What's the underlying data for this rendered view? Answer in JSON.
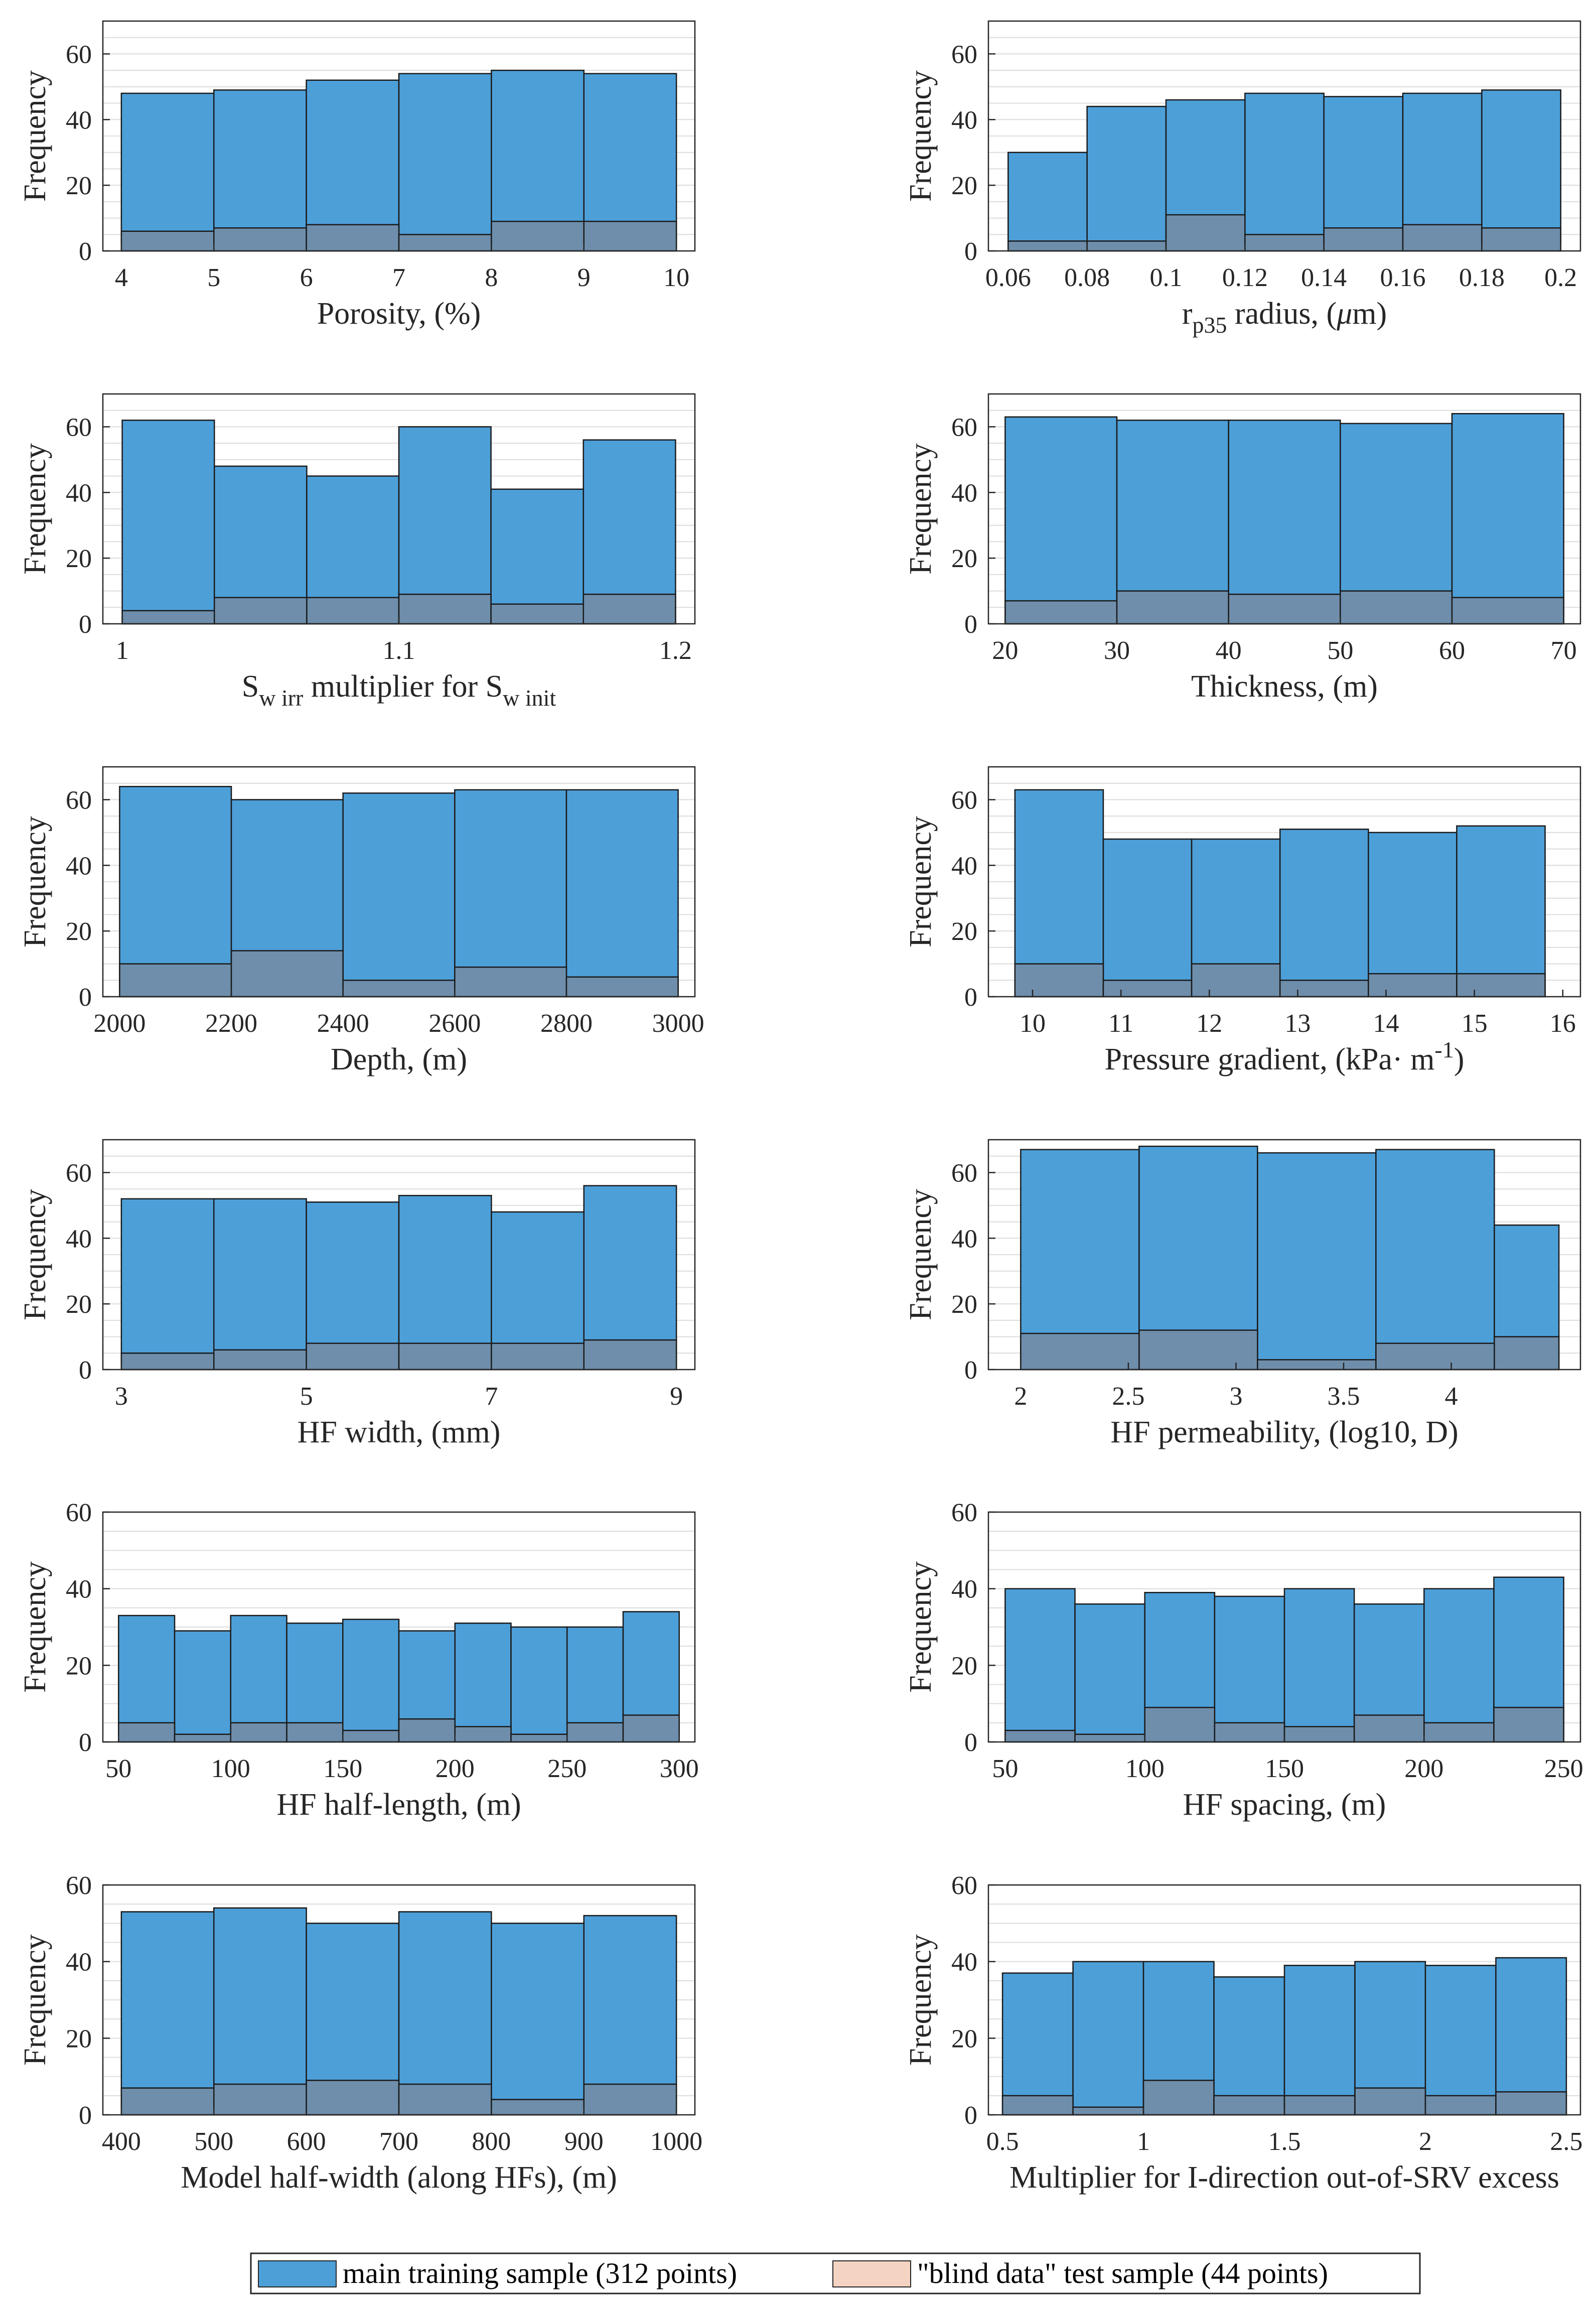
{
  "colors": {
    "main": "#4d9fd8",
    "blind": "#f5d3c2",
    "overlap": "#6e8eab",
    "grid": "#dcdcdc",
    "axis": "#262626"
  },
  "legend": {
    "main_label": "main training sample (312 points)",
    "blind_label": "\"blind data\" test sample (44 points)"
  },
  "chart_data": [
    {
      "type": "bar",
      "ylabel": "Frequency",
      "xlabel": "Porosity, (%)",
      "edges": [
        4,
        5,
        6,
        7,
        8,
        9,
        10
      ],
      "series": [
        {
          "name": "main training sample (312 points)",
          "values": [
            48,
            49,
            52,
            54,
            55,
            54
          ]
        },
        {
          "name": "\"blind data\" test sample (44 points)",
          "values": [
            6,
            7,
            8,
            5,
            9,
            9
          ]
        }
      ],
      "xlim": [
        3.8,
        10.2
      ],
      "ylim": [
        0,
        70
      ],
      "xticks": [
        4,
        5,
        6,
        7,
        8,
        9,
        10
      ],
      "xtick_labels": [
        "4",
        "5",
        "6",
        "7",
        "8",
        "9",
        "10"
      ],
      "yticks": [
        0,
        20,
        40,
        60
      ],
      "ytick_labels": [
        "0",
        "20",
        "40",
        "60"
      ]
    },
    {
      "type": "bar",
      "ylabel": "Frequency",
      "xlabel": "r_p35 radius, (μm)",
      "xlabel_parts": [
        "r",
        "p35",
        " radius, (",
        "μ",
        "m)"
      ],
      "edges": [
        0.06,
        0.08,
        0.1,
        0.12,
        0.14,
        0.16,
        0.18,
        0.2
      ],
      "series": [
        {
          "name": "main training sample (312 points)",
          "values": [
            30,
            44,
            46,
            48,
            47,
            48,
            49
          ]
        },
        {
          "name": "\"blind data\" test sample (44 points)",
          "values": [
            3,
            3,
            11,
            5,
            7,
            8,
            7
          ]
        }
      ],
      "xlim": [
        0.055,
        0.205
      ],
      "ylim": [
        0,
        70
      ],
      "xticks": [
        0.06,
        0.08,
        0.1,
        0.12,
        0.14,
        0.16,
        0.18,
        0.2
      ],
      "xtick_labels": [
        "0.06",
        "0.08",
        "0.1",
        "0.12",
        "0.14",
        "0.16",
        "0.18",
        "0.2"
      ],
      "yticks": [
        0,
        20,
        40,
        60
      ],
      "ytick_labels": [
        "0",
        "20",
        "40",
        "60"
      ]
    },
    {
      "type": "bar",
      "ylabel": "Frequency",
      "xlabel": "S_w irr multiplier for S_w init",
      "xlabel_parts": [
        "S",
        "w irr",
        " multiplier for S",
        "w init"
      ],
      "edges": [
        1,
        1.0333,
        1.0667,
        1.1,
        1.1333,
        1.1667,
        1.2
      ],
      "series": [
        {
          "name": "main training sample (312 points)",
          "values": [
            62,
            48,
            45,
            60,
            41,
            56
          ]
        },
        {
          "name": "\"blind data\" test sample (44 points)",
          "values": [
            4,
            8,
            8,
            9,
            6,
            9
          ]
        }
      ],
      "xlim": [
        0.993,
        1.207
      ],
      "ylim": [
        0,
        70
      ],
      "xticks": [
        1,
        1.1,
        1.2
      ],
      "xtick_labels": [
        "1",
        "1.1",
        "1.2"
      ],
      "yticks": [
        0,
        20,
        40,
        60
      ],
      "ytick_labels": [
        "0",
        "20",
        "40",
        "60"
      ]
    },
    {
      "type": "bar",
      "ylabel": "Frequency",
      "xlabel": "Thickness, (m)",
      "edges": [
        20,
        30,
        40,
        50,
        60,
        70
      ],
      "series": [
        {
          "name": "main training sample (312 points)",
          "values": [
            63,
            62,
            62,
            61,
            64
          ]
        },
        {
          "name": "\"blind data\" test sample (44 points)",
          "values": [
            7,
            10,
            9,
            10,
            8
          ]
        }
      ],
      "xlim": [
        18.5,
        71.5
      ],
      "ylim": [
        0,
        70
      ],
      "xticks": [
        20,
        30,
        40,
        50,
        60,
        70
      ],
      "xtick_labels": [
        "20",
        "30",
        "40",
        "50",
        "60",
        "70"
      ],
      "yticks": [
        0,
        20,
        40,
        60
      ],
      "ytick_labels": [
        "0",
        "20",
        "40",
        "60"
      ]
    },
    {
      "type": "bar",
      "ylabel": "Frequency",
      "xlabel": "Depth, (m)",
      "edges": [
        2000,
        2200,
        2400,
        2600,
        2800,
        3000
      ],
      "series": [
        {
          "name": "main training sample (312 points)",
          "values": [
            64,
            60,
            62,
            63,
            63
          ]
        },
        {
          "name": "\"blind data\" test sample (44 points)",
          "values": [
            10,
            14,
            5,
            9,
            6
          ]
        }
      ],
      "xlim": [
        1970,
        3030
      ],
      "ylim": [
        0,
        70
      ],
      "xticks": [
        2000,
        2200,
        2400,
        2600,
        2800,
        3000
      ],
      "xtick_labels": [
        "2000",
        "2200",
        "2400",
        "2600",
        "2800",
        "3000"
      ],
      "yticks": [
        0,
        20,
        40,
        60
      ],
      "ytick_labels": [
        "0",
        "20",
        "40",
        "60"
      ]
    },
    {
      "type": "bar",
      "ylabel": "Frequency",
      "xlabel": "Pressure gradient, (kPa· m^-1)",
      "xlabel_parts": [
        "Pressure gradient, (kPa· m",
        "-1",
        ")"
      ],
      "edges": [
        9.8,
        10.8,
        11.8,
        12.8,
        13.8,
        14.8,
        15.8
      ],
      "series": [
        {
          "name": "main training sample (312 points)",
          "values": [
            63,
            48,
            48,
            51,
            50,
            52
          ]
        },
        {
          "name": "\"blind data\" test sample (44 points)",
          "values": [
            10,
            5,
            10,
            5,
            7,
            7
          ]
        }
      ],
      "xlim": [
        9.5,
        16.2
      ],
      "ylim": [
        0,
        70
      ],
      "xticks": [
        10,
        11,
        12,
        13,
        14,
        15,
        16
      ],
      "xtick_labels": [
        "10",
        "11",
        "12",
        "13",
        "14",
        "15",
        "16"
      ],
      "yticks": [
        0,
        20,
        40,
        60
      ],
      "ytick_labels": [
        "0",
        "20",
        "40",
        "60"
      ]
    },
    {
      "type": "bar",
      "ylabel": "Frequency",
      "xlabel": "HF width, (mm)",
      "edges": [
        3,
        4,
        5,
        6,
        7,
        8,
        9
      ],
      "series": [
        {
          "name": "main training sample (312 points)",
          "values": [
            52,
            52,
            51,
            53,
            48,
            56
          ]
        },
        {
          "name": "\"blind data\" test sample (44 points)",
          "values": [
            5,
            6,
            8,
            8,
            8,
            9
          ]
        }
      ],
      "xlim": [
        2.8,
        9.2
      ],
      "ylim": [
        0,
        70
      ],
      "xticks": [
        3,
        5,
        7,
        9
      ],
      "xtick_labels": [
        "3",
        "5",
        "7",
        "9"
      ],
      "yticks": [
        0,
        20,
        40,
        60
      ],
      "ytick_labels": [
        "0",
        "20",
        "40",
        "60"
      ]
    },
    {
      "type": "bar",
      "ylabel": "Frequency",
      "xlabel": "HF permeability, (log10, D)",
      "edges": [
        2,
        2.55,
        3.1,
        3.65,
        4.2,
        4.5
      ],
      "series": [
        {
          "name": "main training sample (312 points)",
          "values": [
            67,
            68,
            66,
            67,
            44
          ]
        },
        {
          "name": "\"blind data\" test sample (44 points)",
          "values": [
            11,
            12,
            3,
            8,
            10
          ]
        }
      ],
      "xlim": [
        1.85,
        4.6
      ],
      "ylim": [
        0,
        70
      ],
      "xticks": [
        2,
        2.5,
        3,
        3.5,
        4
      ],
      "xtick_labels": [
        "2",
        "2.5",
        "3",
        "3.5",
        "4"
      ],
      "yticks": [
        0,
        20,
        40,
        60
      ],
      "ytick_labels": [
        "0",
        "20",
        "40",
        "60"
      ]
    },
    {
      "type": "bar",
      "ylabel": "Frequency",
      "xlabel": "HF half-length, (m)",
      "edges": [
        50,
        75,
        100,
        125,
        150,
        175,
        200,
        225,
        250,
        275,
        300
      ],
      "series": [
        {
          "name": "main training sample (312 points)",
          "values": [
            33,
            29,
            33,
            31,
            32,
            29,
            31,
            30,
            30,
            34
          ]
        },
        {
          "name": "\"blind data\" test sample (44 points)",
          "values": [
            5,
            2,
            5,
            5,
            3,
            6,
            4,
            2,
            5,
            7
          ]
        }
      ],
      "xlim": [
        43,
        307
      ],
      "ylim": [
        0,
        60
      ],
      "xticks": [
        50,
        100,
        150,
        200,
        250,
        300
      ],
      "xtick_labels": [
        "50",
        "100",
        "150",
        "200",
        "250",
        "300"
      ],
      "yticks": [
        0,
        20,
        40,
        60
      ],
      "ytick_labels": [
        "0",
        "20",
        "40",
        "60"
      ]
    },
    {
      "type": "bar",
      "ylabel": "Frequency",
      "xlabel": "HF spacing, (m)",
      "edges": [
        50,
        75,
        100,
        125,
        150,
        175,
        200,
        225,
        250
      ],
      "series": [
        {
          "name": "main training sample (312 points)",
          "values": [
            40,
            36,
            39,
            38,
            40,
            36,
            40,
            43
          ]
        },
        {
          "name": "\"blind data\" test sample (44 points)",
          "values": [
            3,
            2,
            9,
            5,
            4,
            7,
            5,
            9
          ]
        }
      ],
      "xlim": [
        44,
        256
      ],
      "ylim": [
        0,
        60
      ],
      "xticks": [
        50,
        100,
        150,
        200,
        250
      ],
      "xtick_labels": [
        "50",
        "100",
        "150",
        "200",
        "250"
      ],
      "yticks": [
        0,
        20,
        40,
        60
      ],
      "ytick_labels": [
        "0",
        "20",
        "40",
        "60"
      ]
    },
    {
      "type": "bar",
      "ylabel": "Frequency",
      "xlabel": "Model half-width (along HFs), (m)",
      "edges": [
        400,
        500,
        600,
        700,
        800,
        900,
        1000
      ],
      "series": [
        {
          "name": "main training sample (312 points)",
          "values": [
            53,
            54,
            50,
            53,
            50,
            52
          ]
        },
        {
          "name": "\"blind data\" test sample (44 points)",
          "values": [
            7,
            8,
            9,
            8,
            4,
            8
          ]
        }
      ],
      "xlim": [
        380,
        1020
      ],
      "ylim": [
        0,
        60
      ],
      "xticks": [
        400,
        500,
        600,
        700,
        800,
        900,
        1000
      ],
      "xtick_labels": [
        "400",
        "500",
        "600",
        "700",
        "800",
        "900",
        "1000"
      ],
      "yticks": [
        0,
        20,
        40,
        60
      ],
      "ytick_labels": [
        "0",
        "20",
        "40",
        "60"
      ]
    },
    {
      "type": "bar",
      "ylabel": "Frequency",
      "xlabel": "Multiplier for I-direction out-of-SRV excess",
      "edges": [
        0.5,
        0.75,
        1,
        1.25,
        1.5,
        1.75,
        2,
        2.25,
        2.5
      ],
      "series": [
        {
          "name": "main training sample (312 points)",
          "values": [
            37,
            40,
            40,
            36,
            39,
            40,
            39,
            41
          ]
        },
        {
          "name": "\"blind data\" test sample (44 points)",
          "values": [
            5,
            2,
            9,
            5,
            5,
            7,
            5,
            6
          ]
        }
      ],
      "xlim": [
        0.45,
        2.55
      ],
      "ylim": [
        0,
        60
      ],
      "xticks": [
        0.5,
        1,
        1.5,
        2,
        2.5
      ],
      "xtick_labels": [
        "0.5",
        "1",
        "1.5",
        "2",
        "2.5"
      ],
      "yticks": [
        0,
        20,
        40,
        60
      ],
      "ytick_labels": [
        "0",
        "20",
        "40",
        "60"
      ]
    }
  ]
}
